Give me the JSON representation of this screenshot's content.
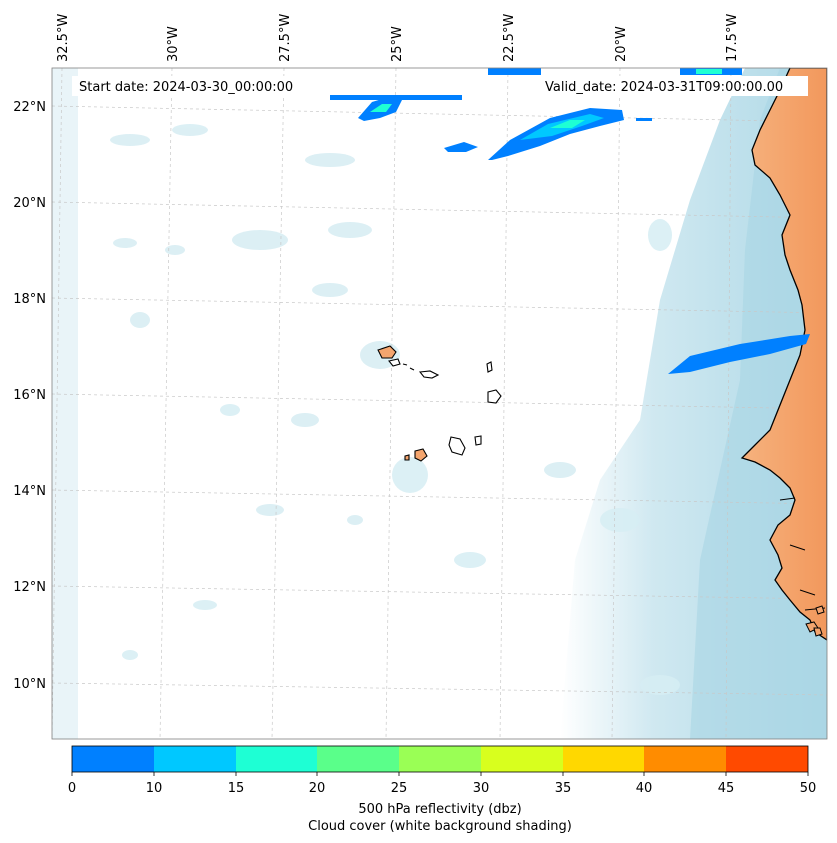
{
  "header": {
    "start_date": "Start date: 2024-03-30_00:00:00",
    "valid_date": "Valid_date: 2024-03-31T09:00:00.00"
  },
  "longitude_labels": [
    "32.5°W",
    "30°W",
    "27.5°W",
    "25°W",
    "22.5°W",
    "20°W",
    "17.5°W"
  ],
  "latitude_labels": [
    "22°N",
    "20°N",
    "18°N",
    "16°N",
    "14°N",
    "12°N",
    "10°N"
  ],
  "colorbar": {
    "ticks": [
      "0",
      "10",
      "15",
      "20",
      "25",
      "30",
      "35",
      "40",
      "45",
      "50"
    ],
    "colors": [
      "#0080ff",
      "#00c8ff",
      "#1effd4",
      "#5aff8a",
      "#9aff55",
      "#d8ff1e",
      "#ffd800",
      "#ff8c00",
      "#ff4a00"
    ],
    "label_line1": "500 hPa reflectivity (dbz)",
    "label_line2": "Cloud cover (white background shading)"
  },
  "colors": {
    "land": "#f4a56e",
    "cloud_light": "#d6edf3",
    "cloud_dark": "#a9d6e5",
    "grid": "#c8c8c8"
  }
}
